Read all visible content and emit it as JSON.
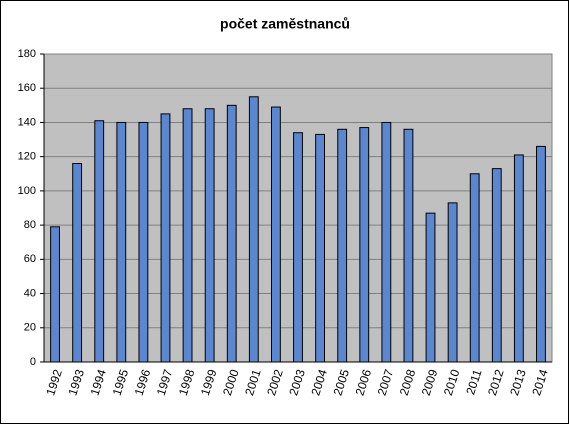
{
  "chart_data": {
    "type": "bar",
    "title": "počet zaměstnanců",
    "categories": [
      "1992",
      "1993",
      "1994",
      "1995",
      "1996",
      "1997",
      "1998",
      "1999",
      "2000",
      "2001",
      "2002",
      "2003",
      "2004",
      "2005",
      "2006",
      "2007",
      "2008",
      "2009",
      "2010",
      "2011",
      "2012",
      "2013",
      "2014"
    ],
    "values": [
      79,
      116,
      141,
      140,
      140,
      145,
      148,
      148,
      150,
      155,
      149,
      134,
      133,
      136,
      137,
      140,
      136,
      87,
      93,
      110,
      113,
      121,
      126
    ],
    "color": "#5b87d0",
    "ylim": [
      0,
      180
    ],
    "yticks": [
      0,
      20,
      40,
      60,
      80,
      100,
      120,
      140,
      160,
      180
    ],
    "grid": true
  }
}
